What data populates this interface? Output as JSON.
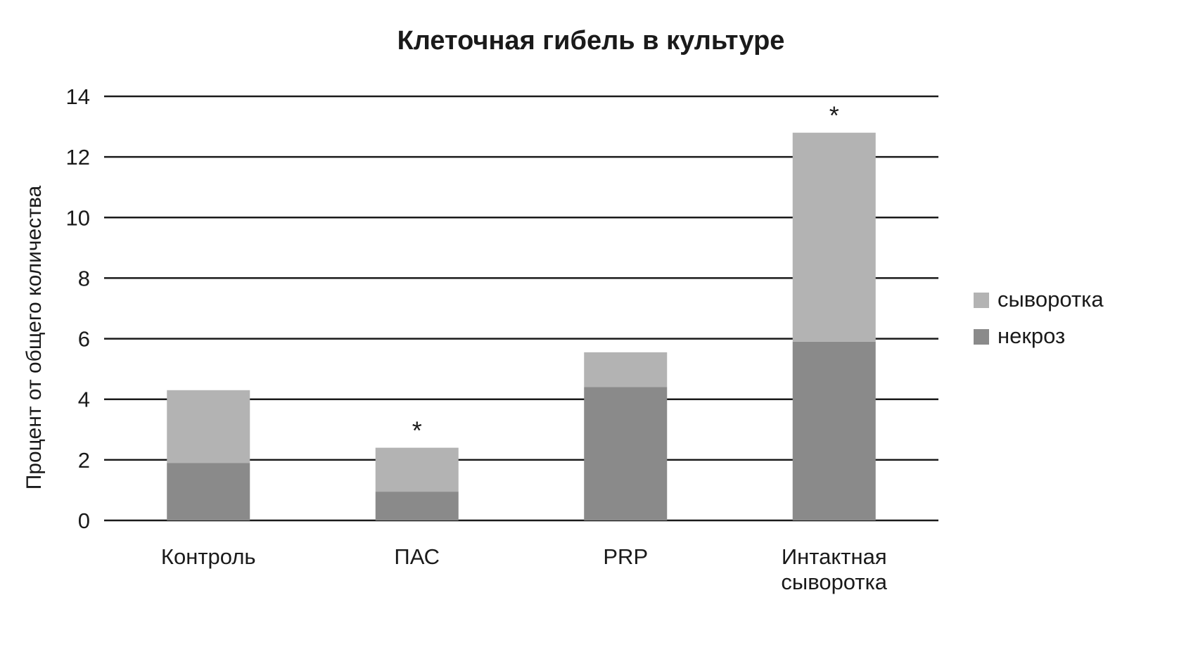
{
  "chart_data": {
    "type": "bar",
    "stacked": true,
    "title": "Клеточная гибель в культуре",
    "xlabel": "",
    "ylabel": "Процент от общего количества",
    "ylim": [
      0,
      14
    ],
    "yticks": [
      0,
      2,
      4,
      6,
      8,
      10,
      12,
      14
    ],
    "grid": true,
    "legend_position": "right",
    "categories": [
      [
        "Контроль"
      ],
      [
        "ПАС"
      ],
      [
        "PRP"
      ],
      [
        "Интактная",
        "сыворотка"
      ]
    ],
    "series": [
      {
        "name": "некроз",
        "color": "#8a8a8a",
        "values": [
          1.9,
          0.95,
          4.4,
          5.9
        ]
      },
      {
        "name": "сыворотка",
        "color": "#b3b3b3",
        "values": [
          2.4,
          1.45,
          1.15,
          6.9
        ]
      }
    ],
    "legend_order": [
      1,
      0
    ],
    "annotations": [
      {
        "category_index": 1,
        "text": "*"
      },
      {
        "category_index": 3,
        "text": "*"
      }
    ]
  }
}
